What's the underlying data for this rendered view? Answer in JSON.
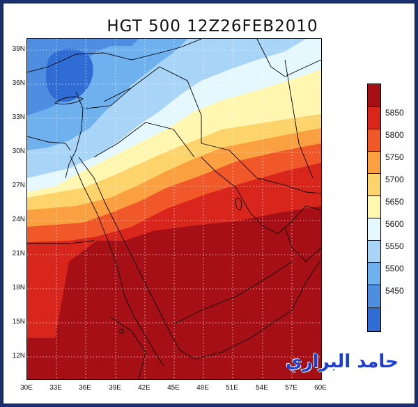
{
  "title": "HGT 500 12Z26FEB2010",
  "signature": "حامد البراري",
  "lat_labels": [
    "39N",
    "36N",
    "33N",
    "30N",
    "27N",
    "24N",
    "21N",
    "18N",
    "15N",
    "12N"
  ],
  "lon_labels": [
    "30E",
    "33E",
    "36E",
    "39E",
    "42E",
    "45E",
    "48E",
    "51E",
    "54E",
    "57E",
    "60E"
  ],
  "colorbar": {
    "levels": [
      "5850",
      "5800",
      "5750",
      "5700",
      "5650",
      "5600",
      "5550",
      "5500",
      "5450"
    ],
    "colors": [
      "#a50f15",
      "#d9261c",
      "#f0582a",
      "#fba040",
      "#fdd36b",
      "#fff6b0",
      "#e6f8ff",
      "#a8d5f7",
      "#6fb0ee",
      "#4d8ee0",
      "#2f6dd4"
    ]
  },
  "map": {
    "domain": {
      "lon_min": 30,
      "lon_max": 60,
      "lat_min": 10,
      "lat_max": 40
    },
    "graticule": "dotted",
    "field": "500 hPa geopotential height"
  }
}
